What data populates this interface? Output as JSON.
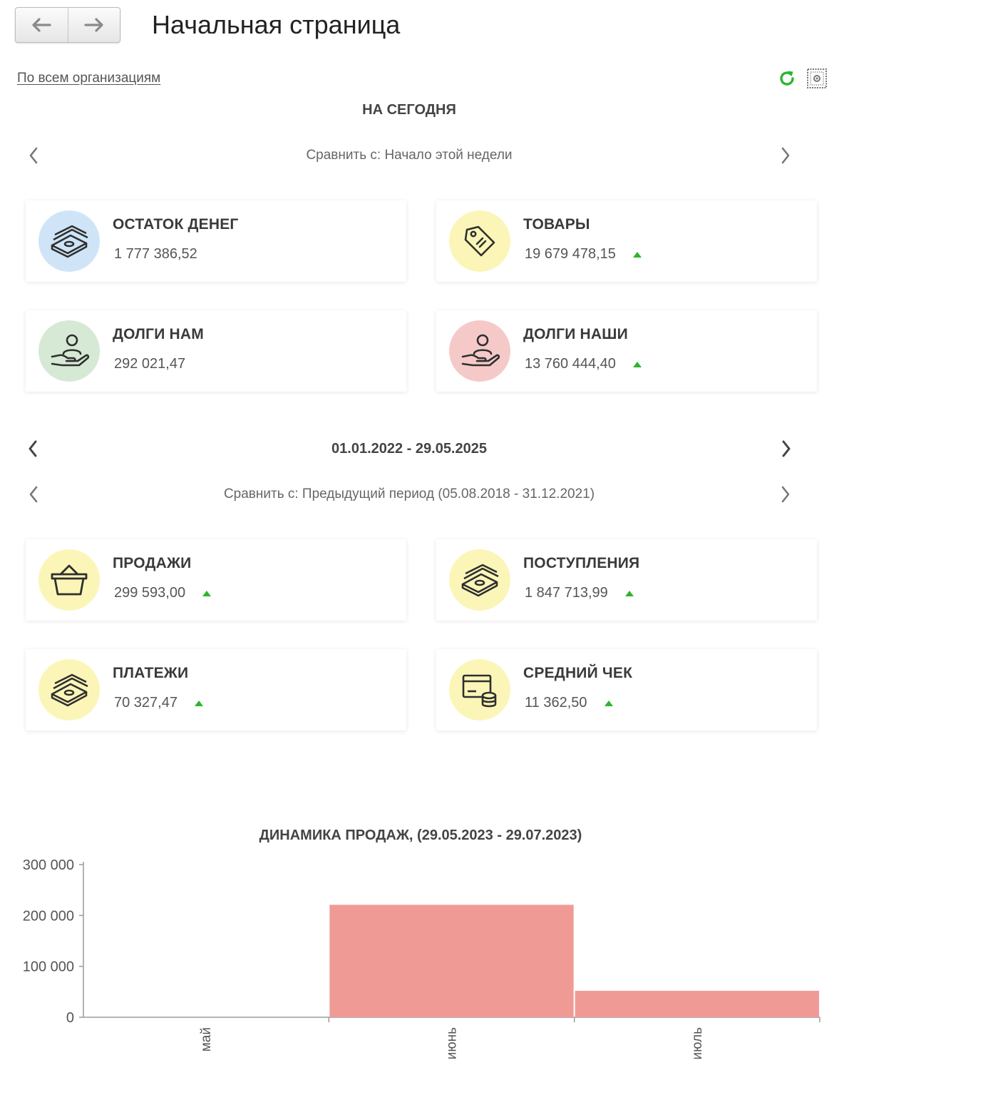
{
  "header": {
    "title": "Начальная страница",
    "back_icon": "arrow-left-icon",
    "forward_icon": "arrow-right-icon"
  },
  "toolbar": {
    "org_link": "По всем организациям",
    "refresh_icon": "refresh-icon",
    "settings_icon": "qr-settings-icon",
    "refresh_color": "#2db52d"
  },
  "today": {
    "title": "НА СЕГОДНЯ",
    "compare": "Сравнить с: Начало этой недели",
    "cards": [
      {
        "title": "ОСТАТОК ДЕНЕГ",
        "value": "1 777 386,52",
        "trend": "none",
        "icon": "money-stack-icon",
        "color": "#cfe5f7"
      },
      {
        "title": "ТОВАРЫ",
        "value": "19 679 478,15",
        "trend": "up",
        "icon": "price-tag-icon",
        "color": "#fbf6b8"
      },
      {
        "title": "ДОЛГИ НАМ",
        "value": "292 021,47",
        "trend": "none",
        "icon": "hand-person-icon",
        "color": "#d5e9d4"
      },
      {
        "title": "ДОЛГИ НАШИ",
        "value": "13 760 444,40",
        "trend": "up",
        "icon": "hand-person-icon",
        "color": "#f6c9c9"
      }
    ]
  },
  "period": {
    "range": "01.01.2022 - 29.05.2025",
    "compare": "Сравнить с: Предыдущий период (05.08.2018 - 31.12.2021)",
    "cards": [
      {
        "title": "ПРОДАЖИ",
        "value": "299 593,00",
        "trend": "up",
        "icon": "basket-icon",
        "color": "#fbf6b8"
      },
      {
        "title": "ПОСТУПЛЕНИЯ",
        "value": "1 847 713,99",
        "trend": "up",
        "icon": "money-stack-icon",
        "color": "#fbf6b8"
      },
      {
        "title": "ПЛАТЕЖИ",
        "value": "70 327,47",
        "trend": "up",
        "icon": "money-stack-icon",
        "color": "#fbf6b8"
      },
      {
        "title": "СРЕДНИЙ ЧЕК",
        "value": "11 362,50",
        "trend": "up",
        "icon": "card-coins-icon",
        "color": "#fbf6b8"
      }
    ]
  },
  "chart_data": {
    "type": "bar",
    "title": "ДИНАМИКА ПРОДАЖ,  (29.05.2023 - 29.07.2023)",
    "categories": [
      "май",
      "июнь",
      "июль"
    ],
    "values": [
      0,
      221000,
      52000
    ],
    "ylim": [
      0,
      300000
    ],
    "yticks": [
      0,
      100000,
      200000,
      300000
    ],
    "ytick_labels": [
      "0",
      "100 000",
      "200 000",
      "300 000"
    ],
    "xlabel": "",
    "ylabel": "",
    "bar_color": "#f09a96",
    "grid": false,
    "legend": "none"
  }
}
